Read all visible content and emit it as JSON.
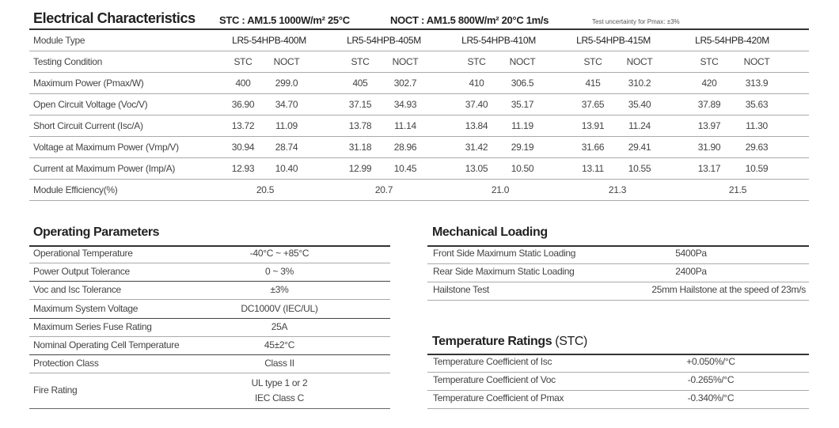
{
  "electrical": {
    "title": "Electrical Characteristics",
    "stc": "STC : AM1.5  1000W/m²  25°C",
    "noct": "NOCT : AM1.5  800W/m²  20°C  1m/s",
    "note": "Test uncertainty for Pmax: ±3%",
    "module_label": "Module Type",
    "modules": [
      "LR5-54HPB-400M",
      "LR5-54HPB-405M",
      "LR5-54HPB-410M",
      "LR5-54HPB-415M",
      "LR5-54HPB-420M"
    ],
    "condition_label": "Testing Condition",
    "conditions": [
      "STC",
      "NOCT"
    ],
    "rows": [
      {
        "label": "Maximum Power (Pmax/W)",
        "values": [
          "400",
          "299.0",
          "405",
          "302.7",
          "410",
          "306.5",
          "415",
          "310.2",
          "420",
          "313.9"
        ]
      },
      {
        "label": "Open Circuit Voltage (Voc/V)",
        "values": [
          "36.90",
          "34.70",
          "37.15",
          "34.93",
          "37.40",
          "35.17",
          "37.65",
          "35.40",
          "37.89",
          "35.63"
        ]
      },
      {
        "label": "Short Circuit Current (Isc/A)",
        "values": [
          "13.72",
          "11.09",
          "13.78",
          "11.14",
          "13.84",
          "11.19",
          "13.91",
          "11.24",
          "13.97",
          "11.30"
        ]
      },
      {
        "label": "Voltage at Maximum Power (Vmp/V)",
        "values": [
          "30.94",
          "28.74",
          "31.18",
          "28.96",
          "31.42",
          "29.19",
          "31.66",
          "29.41",
          "31.90",
          "29.63"
        ]
      },
      {
        "label": "Current at Maximum Power (Imp/A)",
        "values": [
          "12.93",
          "10.40",
          "12.99",
          "10.45",
          "13.05",
          "10.50",
          "13.11",
          "10.55",
          "13.17",
          "10.59"
        ]
      }
    ],
    "efficiency_label": "Module Efficiency(%)",
    "efficiency": [
      "20.5",
      "20.7",
      "21.0",
      "21.3",
      "21.5"
    ]
  },
  "operating": {
    "title": "Operating Parameters",
    "rows": [
      {
        "label": "Operational Temperature",
        "value": "-40°C ~ +85°C"
      },
      {
        "label": "Power Output Tolerance",
        "value": "0 ~ 3%"
      },
      {
        "label": "Voc and Isc Tolerance",
        "value": "±3%"
      },
      {
        "label": "Maximum System Voltage",
        "value": "DC1000V (IEC/UL)"
      },
      {
        "label": "Maximum Series Fuse Rating",
        "value": "25A"
      },
      {
        "label": "Nominal Operating Cell Temperature",
        "value": "45±2°C"
      },
      {
        "label": "Protection Class",
        "value": "Class II"
      }
    ],
    "fire": {
      "label": "Fire Rating",
      "value1": "UL type 1 or 2",
      "value2": "IEC Class C"
    }
  },
  "mechanical": {
    "title": "Mechanical Loading",
    "rows": [
      {
        "label": "Front Side Maximum Static Loading",
        "value": "5400Pa"
      },
      {
        "label": "Rear Side Maximum Static Loading",
        "value": "2400Pa"
      },
      {
        "label": "Hailstone Test",
        "value": "25mm Hailstone at the speed of 23m/s"
      }
    ]
  },
  "temperature": {
    "title": "Temperature Ratings",
    "suffix": "(STC)",
    "rows": [
      {
        "label": "Temperature Coefficient of  Isc",
        "value": "+0.050%/°C"
      },
      {
        "label": "Temperature Coefficient of  Voc",
        "value": "-0.265%/°C"
      },
      {
        "label": "Temperature Coefficient of  Pmax",
        "value": "-0.340%/°C"
      }
    ]
  }
}
